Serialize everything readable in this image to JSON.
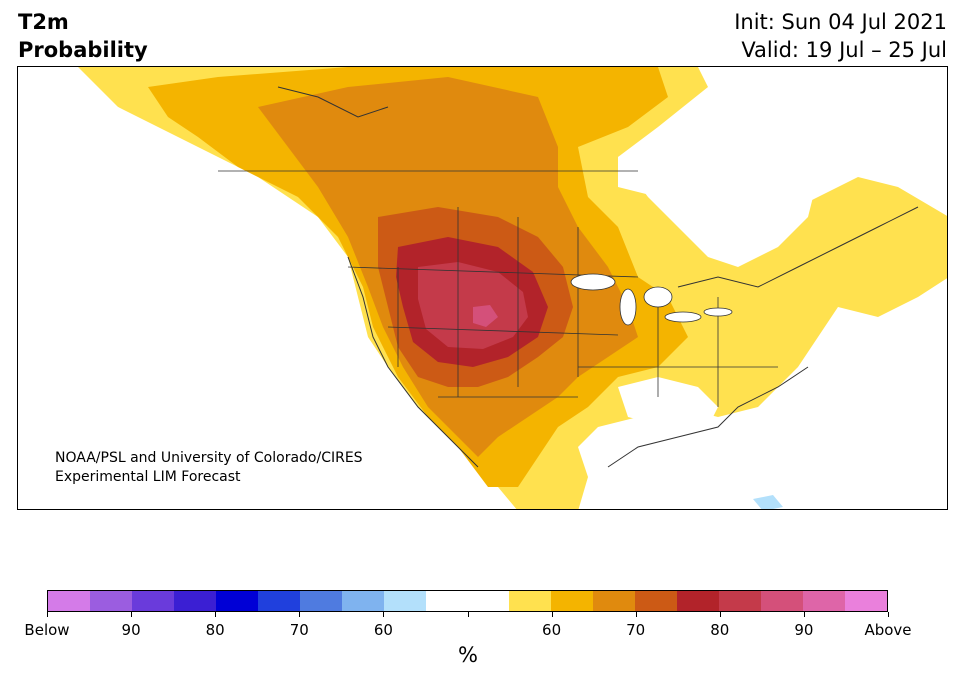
{
  "title": {
    "left_line1": "T2m",
    "left_line2": "Probability",
    "init": "Init: Sun 04 Jul 2021",
    "valid": "Valid: 19 Jul – 25 Jul"
  },
  "credit": {
    "line1": "NOAA/PSL and University of Colorado/CIRES",
    "line2": "Experimental LIM Forecast"
  },
  "colorbar": {
    "colors": [
      "#d47be8",
      "#9b5de0",
      "#6a3bdb",
      "#3b1fd3",
      "#0000d6",
      "#2040dd",
      "#4f7be0",
      "#7fb3ef",
      "#b3e0fb",
      "#ffffff",
      "#ffffff",
      "#ffe14f",
      "#f4b400",
      "#e08a0e",
      "#cc5a15",
      "#b2232a",
      "#c43a4a",
      "#d4507a",
      "#de65a8",
      "#ea80dc"
    ],
    "labels": [
      "Below",
      "90",
      "80",
      "70",
      "60",
      "",
      "60",
      "70",
      "80",
      "90",
      "Above"
    ],
    "units": "%"
  },
  "map": {
    "colors": {
      "p55": "#ffe14f",
      "p60": "#f4b400",
      "p65": "#e08a0e",
      "p70": "#cc5a15",
      "p75": "#b2232a",
      "p80": "#c43a4a",
      "p85": "#d4507a",
      "below60": "#b3e0fb",
      "land": "#ffffff",
      "border": "#333333"
    }
  }
}
